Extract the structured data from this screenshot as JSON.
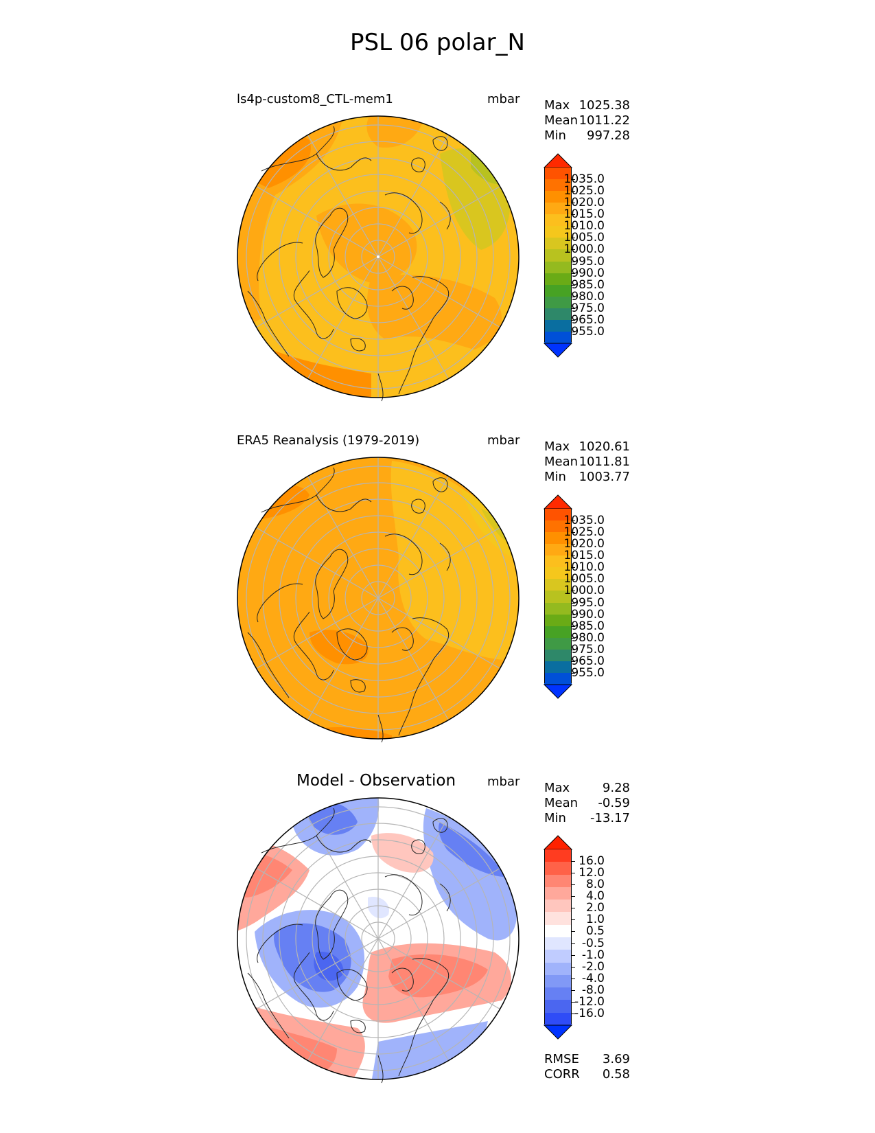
{
  "title": "PSL 06 polar_N",
  "panels": [
    {
      "label": "ls4p-custom8_CTL-mem1",
      "units": "mbar",
      "stats": [
        {
          "k": "Max",
          "v": "1025.38"
        },
        {
          "k": "Mean",
          "v": "1011.22"
        },
        {
          "k": "Min",
          "v": "997.28"
        }
      ],
      "colorbar_ticks": [
        "1035.0",
        "1025.0",
        "1020.0",
        "1015.0",
        "1010.0",
        "1005.0",
        "1000.0",
        "995.0",
        "990.0",
        "985.0",
        "980.0",
        "975.0",
        "965.0",
        "955.0"
      ]
    },
    {
      "label": "ERA5 Reanalysis (1979-2019)",
      "units": "mbar",
      "stats": [
        {
          "k": "Max",
          "v": "1020.61"
        },
        {
          "k": "Mean",
          "v": "1011.81"
        },
        {
          "k": "Min",
          "v": "1003.77"
        }
      ],
      "colorbar_ticks": [
        "1035.0",
        "1025.0",
        "1020.0",
        "1015.0",
        "1010.0",
        "1005.0",
        "1000.0",
        "995.0",
        "990.0",
        "985.0",
        "980.0",
        "975.0",
        "965.0",
        "955.0"
      ]
    },
    {
      "label": "Model - Observation",
      "units": "mbar",
      "stats": [
        {
          "k": "Max",
          "v": "9.28"
        },
        {
          "k": "Mean",
          "v": "-0.59"
        },
        {
          "k": "Min",
          "v": "-13.17"
        }
      ],
      "colorbar_ticks": [
        "16.0",
        "12.0",
        "8.0",
        "4.0",
        "2.0",
        "1.0",
        "0.5",
        "-0.5",
        "-1.0",
        "-2.0",
        "-4.0",
        "-8.0",
        "-12.0",
        "-16.0"
      ],
      "extra_stats": [
        {
          "k": "RMSE",
          "v": "3.69"
        },
        {
          "k": "CORR",
          "v": "0.58"
        }
      ]
    }
  ],
  "colors": {
    "abs_scale": [
      "#ff2a00",
      "#ff5300",
      "#ff7200",
      "#ff9000",
      "#ffa913",
      "#fcbf1d",
      "#f5c71c",
      "#d9c61f",
      "#b8c21f",
      "#94ba1f",
      "#6aab16",
      "#47a224",
      "#3f9a45",
      "#2e8869",
      "#0a6ea0",
      "#0050d8",
      "#0033ff"
    ],
    "diff_scale": [
      "#ff2200",
      "#ff3c20",
      "#ff6248",
      "#ff8673",
      "#ffa89b",
      "#ffc6be",
      "#ffe2de",
      "#ffffff",
      "#e0e6ff",
      "#c0ccff",
      "#a0b3fb",
      "#8199f6",
      "#6680f3",
      "#4b66f0",
      "#2f4cf7",
      "#0033ff"
    ]
  }
}
